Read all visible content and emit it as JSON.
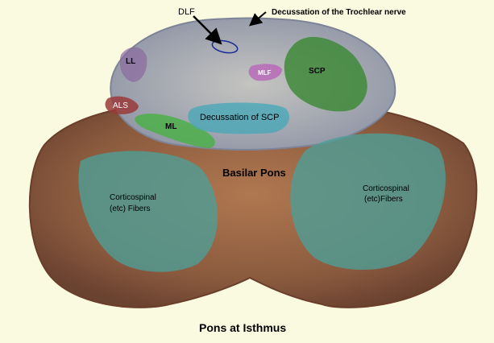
{
  "labels": {
    "dlf": "DLF",
    "decussation_trochlear": "Decussation of the Trochlear nerve",
    "ll": "LL",
    "mlf": "MLF",
    "scp": "SCP",
    "als": "ALS",
    "ml": "ML",
    "decussation_scp": "Decussation of SCP",
    "basilar_pons": "Basilar Pons",
    "corticospinal_left_line1": "Corticospinal",
    "corticospinal_left_line2": "(etc) Fibers",
    "corticospinal_right_line1": "Corticospinal",
    "corticospinal_right_line2": "(etc)Fibers",
    "caption": "Pons at Isthmus"
  },
  "colors": {
    "background": "#fafae0",
    "tegmentum": "#9aa0ae",
    "basilar_pons": "#8a5a3e",
    "corticospinal_overlay": "#4f9e96",
    "scp_overlay": "#3f8a3a",
    "ml_overlay": "#4caf4a",
    "mlf_overlay": "#b86ab8",
    "ll_overlay": "#8a6aa0",
    "als_overlay": "#9a3a3a",
    "decussation_scp_overlay": "#4aa8b8"
  }
}
